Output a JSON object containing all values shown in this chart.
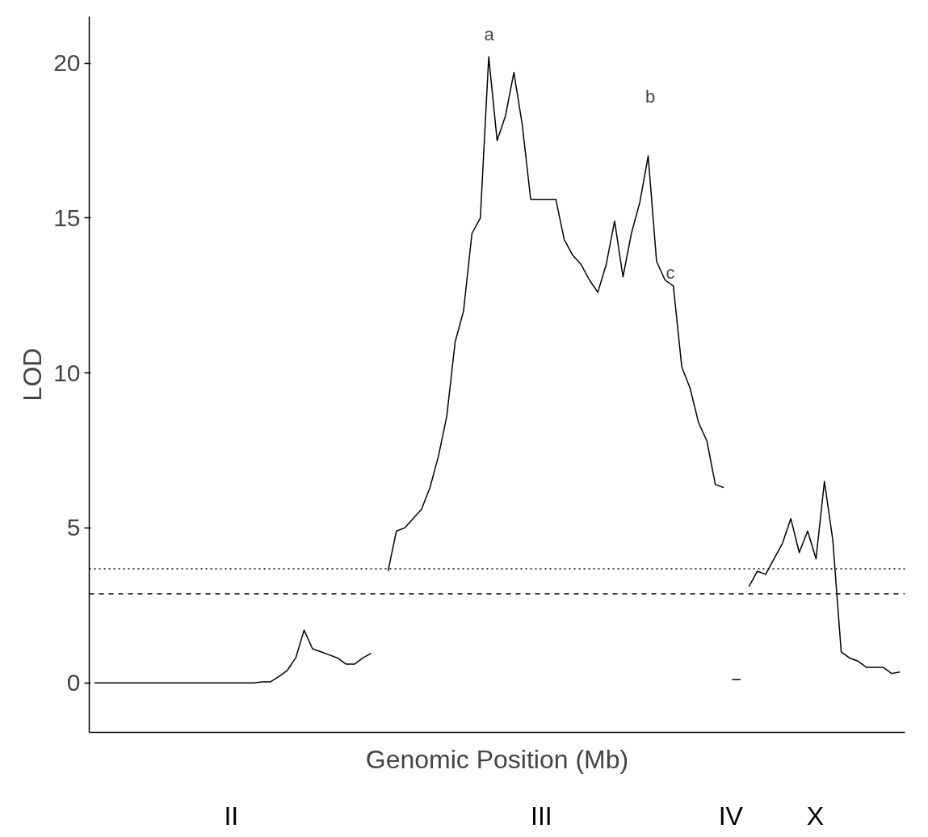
{
  "chart_data": {
    "type": "line",
    "xlabel": "Genomic Position (Mb)",
    "ylabel": "LOD",
    "tick_labels": "y",
    "categories": [
      null,
      null,
      null,
      null,
      null,
      null,
      null,
      null,
      null,
      null,
      null,
      null,
      null,
      null,
      null,
      null,
      null,
      null,
      null,
      null,
      null,
      null,
      null,
      null,
      null,
      null,
      null,
      null,
      null,
      null,
      null,
      null,
      null,
      null,
      null,
      null,
      null,
      null,
      null,
      null,
      null,
      null,
      null,
      null,
      null,
      null,
      null,
      null,
      null,
      null,
      null,
      null,
      null,
      null,
      null,
      null,
      null,
      null,
      null,
      null,
      null,
      null,
      null,
      null,
      null,
      null,
      null,
      null,
      null,
      null,
      null,
      null,
      null,
      null,
      null,
      null,
      null,
      null,
      null,
      null,
      null,
      null,
      null,
      null,
      null,
      null,
      null,
      null,
      null,
      null,
      null,
      null,
      null,
      null,
      null,
      null,
      null
    ],
    "series": [
      {
        "color": "#000000",
        "values": [
          0,
          0,
          0,
          0,
          0,
          0,
          0,
          0,
          0,
          0,
          0,
          0,
          0,
          0,
          0,
          0,
          0,
          0,
          0,
          0,
          0.03,
          0.03,
          0.2,
          0.4,
          0.8,
          1.7,
          1.1,
          1.0,
          0.9,
          0.8,
          0.6,
          0.6,
          0.8,
          0.95,
          null,
          3.6,
          4.9,
          5.0,
          5.3,
          5.6,
          6.3,
          7.3,
          8.6,
          11.0,
          12.0,
          14.5,
          15.0,
          20.2,
          17.5,
          18.3,
          19.7,
          18.0,
          15.6,
          15.6,
          15.6,
          15.6,
          14.3,
          13.8,
          13.5,
          13.0,
          12.6,
          13.5,
          14.9,
          13.1,
          14.5,
          15.5,
          17.0,
          13.6,
          13.0,
          12.8,
          10.2,
          9.5,
          8.4,
          7.8,
          6.4,
          6.3,
          null,
          null,
          3.1,
          3.6,
          3.5,
          4.0,
          4.5,
          5.3,
          4.2,
          4.9,
          4.0,
          6.5,
          4.6,
          1.0,
          0.8,
          0.7,
          0.5,
          0.5,
          0.5,
          0.3,
          0.35
        ]
      },
      {
        "color": "#000000",
        "values": [
          null,
          null,
          null,
          null,
          null,
          null,
          null,
          null,
          null,
          null,
          null,
          null,
          null,
          null,
          null,
          null,
          null,
          null,
          null,
          null,
          null,
          null,
          null,
          null,
          null,
          null,
          null,
          null,
          null,
          null,
          null,
          null,
          null,
          null,
          null,
          null,
          null,
          null,
          null,
          null,
          null,
          null,
          null,
          null,
          null,
          null,
          null,
          null,
          null,
          null,
          null,
          null,
          null,
          null,
          null,
          null,
          null,
          null,
          null,
          null,
          null,
          null,
          null,
          null,
          null,
          null,
          null,
          null,
          null,
          null,
          null,
          null,
          null,
          null,
          null,
          null,
          0.1,
          0.1,
          null,
          null,
          null,
          null,
          null,
          null,
          null,
          null,
          null,
          null,
          null,
          null,
          null,
          null,
          null,
          null,
          null,
          null,
          null
        ]
      }
    ],
    "ylim": [
      -1.6,
      21.5
    ],
    "yticks": [
      0,
      5,
      10,
      15,
      20
    ],
    "ref_lines": [
      {
        "axis": "y",
        "value": 3.68,
        "line_style": "dotted",
        "color": "#000000"
      },
      {
        "axis": "y",
        "value": 2.87,
        "line_style": "dashed",
        "color": "#000000"
      }
    ],
    "annotations": [
      "II",
      "III",
      "IV",
      "X",
      "a",
      "b",
      "c"
    ],
    "grid": false,
    "marker": "none",
    "line_style": "solid"
  }
}
